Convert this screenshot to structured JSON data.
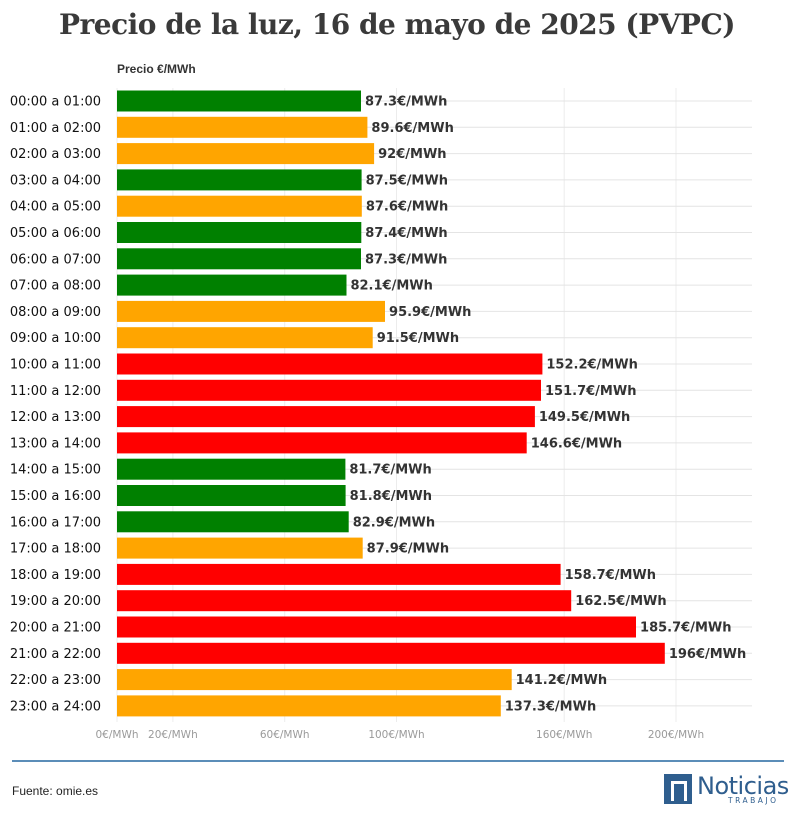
{
  "chart_data": {
    "type": "bar",
    "orientation": "horizontal",
    "title": "Precio de la luz, 16 de mayo de 2025 (PVPC)",
    "value_axis_label": "Precio €/MWh",
    "unit_suffix": "€/MWh",
    "xlim": [
      0,
      220
    ],
    "ticks": [
      {
        "value": 0,
        "label": "0€/MWh"
      },
      {
        "value": 20,
        "label": "20€/MWh"
      },
      {
        "value": 60,
        "label": "60€/MWh"
      },
      {
        "value": 100,
        "label": "100€/MWh"
      },
      {
        "value": 160,
        "label": "160€/MWh"
      },
      {
        "value": 200,
        "label": "200€/MWh"
      }
    ],
    "colors": {
      "low": "#008000",
      "mid": "#FFA500",
      "high": "#FF0000"
    },
    "categories": [
      "00:00 a 01:00",
      "01:00 a 02:00",
      "02:00 a 03:00",
      "03:00 a 04:00",
      "04:00 a 05:00",
      "05:00 a 06:00",
      "06:00 a 07:00",
      "07:00 a 08:00",
      "08:00 a 09:00",
      "09:00 a 10:00",
      "10:00 a 11:00",
      "11:00 a 12:00",
      "12:00 a 13:00",
      "13:00 a 14:00",
      "14:00 a 15:00",
      "15:00 a 16:00",
      "16:00 a 17:00",
      "17:00 a 18:00",
      "18:00 a 19:00",
      "19:00 a 20:00",
      "20:00 a 21:00",
      "21:00 a 22:00",
      "22:00 a 23:00",
      "23:00 a 24:00"
    ],
    "values": [
      87.3,
      89.6,
      92,
      87.5,
      87.6,
      87.4,
      87.3,
      82.1,
      95.9,
      91.5,
      152.2,
      151.7,
      149.5,
      146.6,
      81.7,
      81.8,
      82.9,
      87.9,
      158.7,
      162.5,
      185.7,
      196,
      141.2,
      137.3
    ],
    "value_labels": [
      "87.3€/MWh",
      "89.6€/MWh",
      "92€/MWh",
      "87.5€/MWh",
      "87.6€/MWh",
      "87.4€/MWh",
      "87.3€/MWh",
      "82.1€/MWh",
      "95.9€/MWh",
      "91.5€/MWh",
      "152.2€/MWh",
      "151.7€/MWh",
      "149.5€/MWh",
      "146.6€/MWh",
      "81.7€/MWh",
      "81.8€/MWh",
      "82.9€/MWh",
      "87.9€/MWh",
      "158.7€/MWh",
      "162.5€/MWh",
      "185.7€/MWh",
      "196€/MWh",
      "141.2€/MWh",
      "137.3€/MWh"
    ],
    "levels": [
      "low",
      "mid",
      "mid",
      "low",
      "mid",
      "low",
      "low",
      "low",
      "mid",
      "mid",
      "high",
      "high",
      "high",
      "high",
      "low",
      "low",
      "low",
      "mid",
      "high",
      "high",
      "high",
      "high",
      "mid",
      "mid"
    ]
  },
  "footer": {
    "source": "Fuente: omie.es",
    "logo_name": "Noticias",
    "logo_sub": "TRABAJO"
  }
}
